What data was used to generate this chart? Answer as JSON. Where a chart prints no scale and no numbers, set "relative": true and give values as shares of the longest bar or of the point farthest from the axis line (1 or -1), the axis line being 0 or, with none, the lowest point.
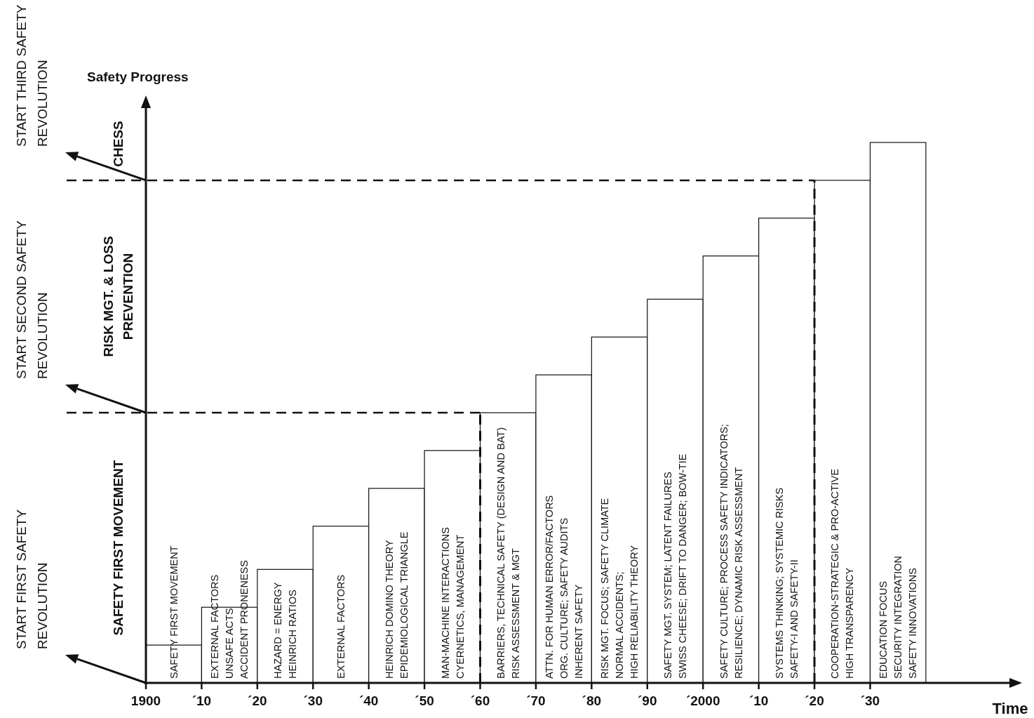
{
  "chart_data": {
    "type": "bar",
    "relative": true,
    "xlabel": "Time",
    "ylabel": "Safety Progress",
    "x": [
      "1905",
      "1915",
      "1925",
      "1935",
      "1945",
      "1955",
      "1965",
      "1975",
      "1985",
      "1995",
      "2005",
      "2015",
      "2025",
      "2035"
    ],
    "values": [
      0.07,
      0.14,
      0.21,
      0.29,
      0.36,
      0.43,
      0.5,
      0.57,
      0.64,
      0.71,
      0.79,
      0.86,
      0.93,
      1
    ],
    "color": "#ffffff",
    "xlim": [
      "1900",
      "2055"
    ],
    "xticks": [
      {
        "value": "1900",
        "label": "1900"
      },
      {
        "value": "1910",
        "label": "´10"
      },
      {
        "value": "1920",
        "label": "´20"
      },
      {
        "value": "1930",
        "label": "´30"
      },
      {
        "value": "1940",
        "label": "´40"
      },
      {
        "value": "1950",
        "label": "´50"
      },
      {
        "value": "1960",
        "label": "´60"
      },
      {
        "value": "1970",
        "label": "´70"
      },
      {
        "value": "1980",
        "label": "´80"
      },
      {
        "value": "1990",
        "label": "´90"
      },
      {
        "value": "2000",
        "label": "´2000"
      },
      {
        "value": "2010",
        "label": "´10"
      },
      {
        "value": "2020",
        "label": "´20"
      },
      {
        "value": "2030",
        "label": "´30"
      }
    ],
    "ref_lines": [
      {
        "axis": "y",
        "value": 0.5,
        "line_style": "dashed"
      },
      {
        "axis": "y",
        "value": 0.93,
        "line_style": "dashed"
      },
      {
        "axis": "x",
        "value": "1960",
        "line_style": "dashed"
      },
      {
        "axis": "x",
        "value": "2020",
        "line_style": "dashed"
      }
    ],
    "annotations": [
      "SAFETY FIRST MOVEMENT",
      "EXTERNAL FACTORS\nUNSAFE ACTS\nACCIDENT PRONENESS",
      "HAZARD = ENERGY\nHEINRICH RATIOS",
      "EXTERNAL FACTORS",
      "HEINRICH DOMINO THEORY\nEPIDEMIOLOGICAL TRIANGLE",
      "MAN-MACHINE INTERACTIONS\nCYERNETICS, MANAGEMENT",
      "BARRIERS, TECHNICAL SAFETY (DESIGN AND BAT)\nRISK ASSESSMENT & MGT",
      "ATTN. FOR HUMAN ERROR/FACTORS\nORG. CULTURE; SAFETY AUDITS\nINHERENT SAFETY",
      "RISK MGT. FOCUS; SAFETY CLIMATE\nNORMAL ACCIDENTS;\nHIGH RELIABILITY THEORY",
      "SAFETY MGT. SYSTEM; LATENT FAILURES\nSWISS CHEESE; DRIFT TO DANGER; BOW-TIE",
      "SAFETY CULTURE; PROCESS SAFETY INDICATORS;\nRESILIENCE; DYNAMIC RISK ASSESSMENT",
      "SYSTEMS THINKING; SYSTEMIC RISKS\nSAFETY-I AND SAFETY-II",
      "COOPERATION-STRATEGIC & PRO-ACTIVE\nHIGH TRANSPARENCY",
      "EDUCATION FOCUS\nSECURITY INTEGRATION\nSAFETY INNOVATIONS",
      "START FIRST SAFETY\nREVOLUTION",
      "START SECOND SAFETY\nREVOLUTION",
      "START THIRD SAFETY\nREVOLUTION",
      "SAFETY FIRST MOVEMENT",
      "RISK MGT. & LOSS\nPREVENTION",
      "CHESS"
    ]
  }
}
